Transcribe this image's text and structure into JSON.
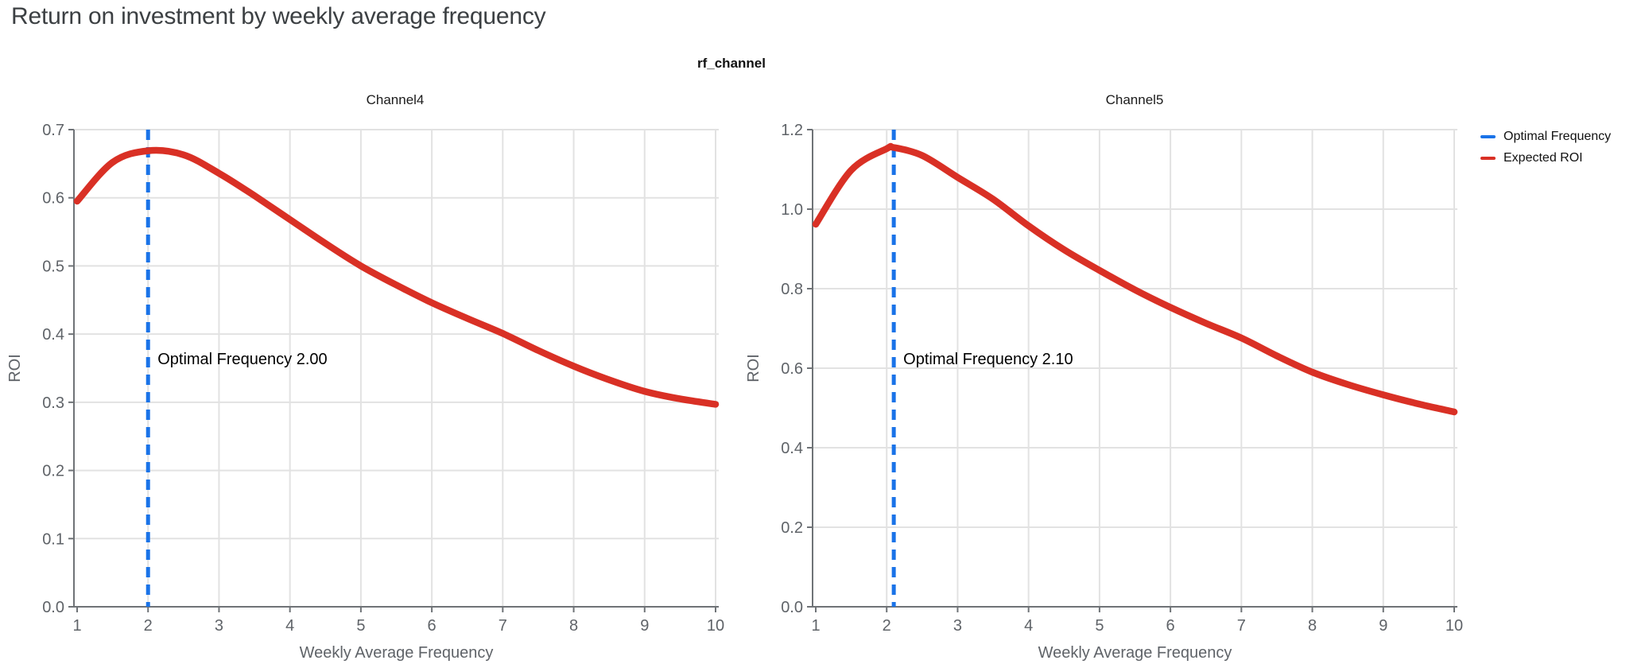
{
  "page": {
    "title": "Return on investment by weekly average frequency"
  },
  "facet": {
    "title": "rf_channel"
  },
  "legend": {
    "items": [
      {
        "label": "Optimal Frequency",
        "color": "#1a73e8"
      },
      {
        "label": "Expected ROI",
        "color": "#d93025"
      }
    ]
  },
  "colors": {
    "expected_roi_line": "#d93025",
    "optimal_frequency_line": "#1a73e8",
    "axis_line": "#6f7377",
    "gridline": "#e2e2e2",
    "tick_label": "#5f6368",
    "axis_title": "#5f6368",
    "annotation_text": "#000000",
    "page_title": "#3c4043",
    "background": "#ffffff"
  },
  "chart_data": [
    {
      "type": "line",
      "title": "Channel4",
      "xlabel": "Weekly Average Frequency",
      "ylabel": "ROI",
      "xlim": [
        1,
        10
      ],
      "ylim": [
        0,
        0.7
      ],
      "xticks": [
        1,
        2,
        3,
        4,
        5,
        6,
        7,
        8,
        9,
        10
      ],
      "yticks": [
        0.0,
        0.1,
        0.2,
        0.3,
        0.4,
        0.5,
        0.6,
        0.7
      ],
      "ytick_labels": [
        "0.0",
        "0.1",
        "0.2",
        "0.3",
        "0.4",
        "0.5",
        "0.6",
        "0.7"
      ],
      "grid": true,
      "optimal_frequency": 2.0,
      "annotation_text": "Optimal Frequency  2.00",
      "series": [
        {
          "name": "Expected ROI",
          "x": [
            1,
            1.5,
            2,
            2.5,
            3,
            3.5,
            4,
            4.5,
            5,
            5.5,
            6,
            6.5,
            7,
            7.5,
            8,
            8.5,
            9,
            9.5,
            10
          ],
          "y": [
            0.595,
            0.652,
            0.669,
            0.663,
            0.636,
            0.603,
            0.568,
            0.533,
            0.5,
            0.472,
            0.446,
            0.423,
            0.401,
            0.376,
            0.353,
            0.333,
            0.316,
            0.305,
            0.297
          ]
        }
      ]
    },
    {
      "type": "line",
      "title": "Channel5",
      "xlabel": "Weekly Average Frequency",
      "ylabel": "ROI",
      "xlim": [
        1,
        10
      ],
      "ylim": [
        0,
        1.2
      ],
      "xticks": [
        1,
        2,
        3,
        4,
        5,
        6,
        7,
        8,
        9,
        10
      ],
      "yticks": [
        0.0,
        0.2,
        0.4,
        0.6,
        0.8,
        1.0,
        1.2
      ],
      "ytick_labels": [
        "0.0",
        "0.2",
        "0.4",
        "0.6",
        "0.8",
        "1.0",
        "1.2"
      ],
      "grid": true,
      "optimal_frequency": 2.1,
      "annotation_text": "Optimal Frequency  2.10",
      "series": [
        {
          "name": "Expected ROI",
          "x": [
            1,
            1.5,
            2,
            2.1,
            2.5,
            3,
            3.5,
            4,
            4.5,
            5,
            5.5,
            6,
            6.5,
            7,
            7.5,
            8,
            8.5,
            9,
            9.5,
            10
          ],
          "y": [
            0.962,
            1.098,
            1.152,
            1.155,
            1.135,
            1.08,
            1.025,
            0.958,
            0.898,
            0.846,
            0.797,
            0.753,
            0.713,
            0.676,
            0.631,
            0.59,
            0.559,
            0.533,
            0.51,
            0.49
          ]
        }
      ]
    }
  ]
}
